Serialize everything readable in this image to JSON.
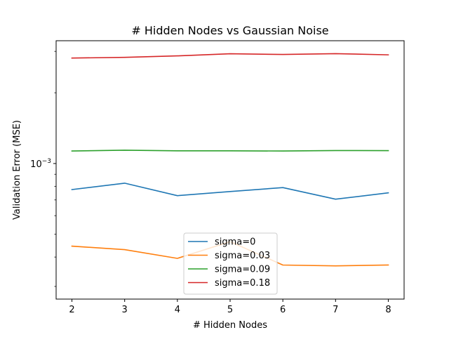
{
  "chart_data": {
    "type": "line",
    "title": "# Hidden Nodes vs Gaussian Noise",
    "xlabel": "# Hidden Nodes",
    "ylabel": "Validation Error (MSE)",
    "yscale": "log",
    "x": [
      2,
      3,
      4,
      5,
      6,
      7,
      8
    ],
    "xlim": [
      1.7,
      8.3
    ],
    "ylim": [
      0.000265,
      0.00333
    ],
    "x_ticks": [
      "2",
      "3",
      "4",
      "5",
      "6",
      "7",
      "8"
    ],
    "y_major_tick": {
      "value": 0.001,
      "label_base": "10",
      "label_exp": "−3"
    },
    "y_minor_ticks": [
      0.0003,
      0.0004,
      0.0005,
      0.0006,
      0.0007,
      0.0008,
      0.0009,
      0.002,
      0.003
    ],
    "grid": false,
    "legend_position": "lower center",
    "series": [
      {
        "name": "sigma=0",
        "color": "#1f77b4",
        "values": [
          0.000775,
          0.000825,
          0.00073,
          0.00076,
          0.00079,
          0.000705,
          0.00075
        ]
      },
      {
        "name": "sigma=0.03",
        "color": "#ff7f0e",
        "values": [
          0.000445,
          0.00043,
          0.000395,
          0.000465,
          0.00037,
          0.000367,
          0.00037
        ]
      },
      {
        "name": "sigma=0.09",
        "color": "#2ca02c",
        "values": [
          0.00113,
          0.00114,
          0.001133,
          0.001133,
          0.00113,
          0.001136,
          0.001134
        ]
      },
      {
        "name": "sigma=0.18",
        "color": "#d62728",
        "values": [
          0.00281,
          0.00283,
          0.00287,
          0.00293,
          0.00291,
          0.002935,
          0.0029
        ]
      }
    ]
  }
}
